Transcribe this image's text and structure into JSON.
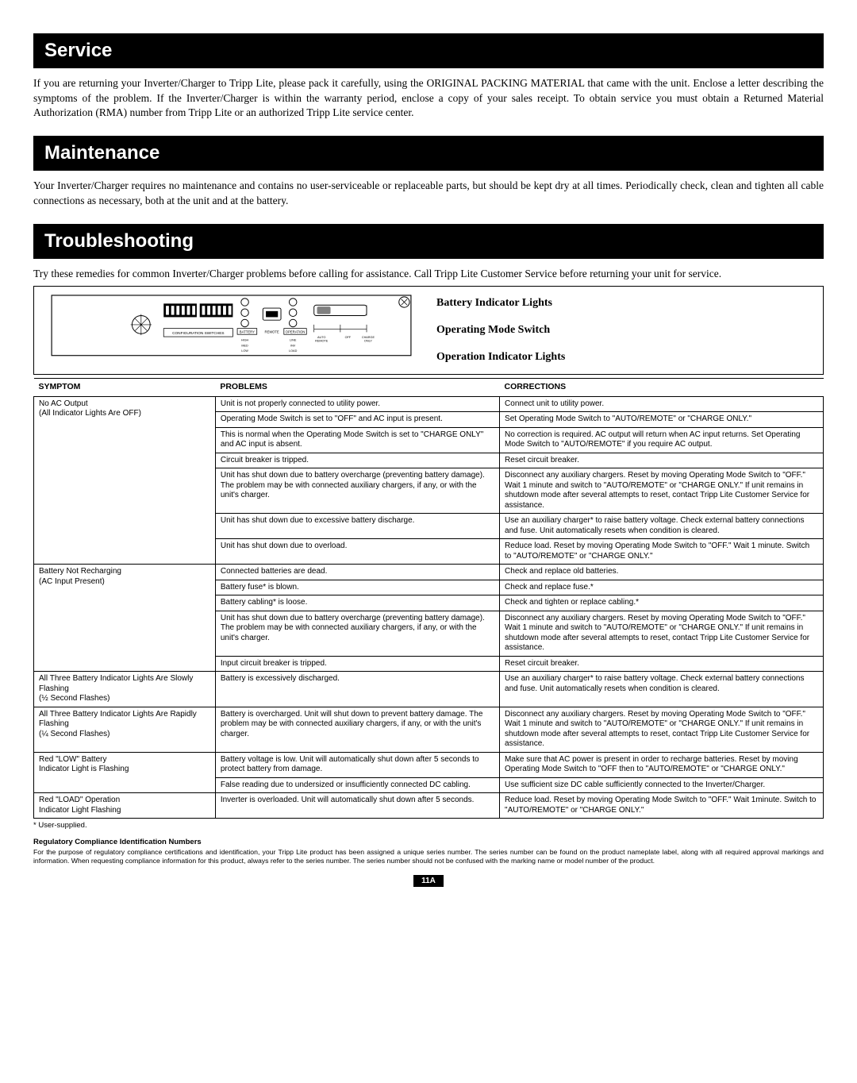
{
  "sections": {
    "service": {
      "title": "Service",
      "body": "If you are returning your Inverter/Charger to Tripp Lite, please pack it carefully, using the ORIGINAL PACKING MATERIAL that came with the unit. Enclose a letter describing the symptoms of the problem. If the Inverter/Charger is within the warranty period, enclose a copy of your sales receipt. To obtain service you must obtain a Returned Material Authorization (RMA) number from Tripp Lite or an authorized Tripp Lite service center."
    },
    "maintenance": {
      "title": "Maintenance",
      "body": "Your Inverter/Charger requires no maintenance and contains no user-serviceable or replaceable parts, but should be kept dry at all times. Periodically check, clean and tighten all cable connections as necessary, both at the unit and at the battery."
    },
    "troubleshooting": {
      "title": "Troubleshooting",
      "body": "Try these remedies for common Inverter/Charger problems before calling for assistance. Call Tripp Lite Customer Service before returning your unit for service."
    }
  },
  "diagram_labels": {
    "battery": "Battery Indicator Lights",
    "mode": "Operating Mode Switch",
    "operation": "Operation Indicator Lights",
    "panel_labels": {
      "config": "CONFIGURATION SWITCHES",
      "battery_col": "BATTERY",
      "remote": "REMOTE",
      "operation_col": "OPERATION",
      "high": "HIGH",
      "med": "MED",
      "low": "LOW",
      "line": "LINE",
      "inv": "INV",
      "load": "LOAD",
      "auto": "AUTO",
      "remote2": "REMOTE",
      "off": "OFF",
      "charge": "CHARGE",
      "only": "ONLY"
    }
  },
  "table": {
    "headers": {
      "symptom": "SYMPTOM",
      "problems": "PROBLEMS",
      "corrections": "CORRECTIONS"
    },
    "rows": [
      {
        "group_start": true,
        "symptom": "No AC Output",
        "symptom2": "(All Indicator Lights Are OFF)",
        "rowspan": 7,
        "problem": "Unit is not properly connected to utility power.",
        "correction": "Connect unit to utility power."
      },
      {
        "problem": "Operating Mode Switch is set to \"OFF\" and AC input is present.",
        "correction": "Set Operating Mode Switch to \"AUTO/REMOTE\" or \"CHARGE ONLY.\""
      },
      {
        "problem": "This is normal when the Operating Mode Switch is set to \"CHARGE ONLY\" and AC input is absent.",
        "correction": "No correction is required. AC output will return when AC input returns. Set Operating Mode Switch to \"AUTO/REMOTE\" if you require AC output."
      },
      {
        "problem": "Circuit breaker is tripped.",
        "correction": "Reset circuit breaker."
      },
      {
        "problem": "Unit has shut down due to battery overcharge (preventing battery damage). The problem may be with connected auxiliary chargers, if any, or with the unit's charger.",
        "correction": "Disconnect any auxiliary chargers. Reset by moving Operating Mode Switch to \"OFF.\" Wait 1 minute and switch to \"AUTO/REMOTE\" or \"CHARGE ONLY.\" If unit remains in shutdown mode after several attempts to reset, contact Tripp Lite Customer Service for assistance."
      },
      {
        "problem": "Unit has shut down due to excessive battery discharge.",
        "correction": "Use an auxiliary charger* to raise battery voltage. Check external battery connections and fuse. Unit automatically resets when condition is cleared."
      },
      {
        "problem": "Unit has shut down due to overload.",
        "correction": "Reduce load. Reset by moving Operating Mode Switch to \"OFF.\" Wait 1 minute. Switch to \"AUTO/REMOTE\" or  \"CHARGE ONLY.\""
      },
      {
        "group_start": true,
        "symptom": "Battery Not Recharging",
        "symptom2": "(AC Input Present)",
        "rowspan": 5,
        "problem": "Connected batteries are dead.",
        "correction": "Check and replace old batteries."
      },
      {
        "problem": "Battery fuse* is blown.",
        "correction": "Check and replace fuse.*"
      },
      {
        "problem": "Battery cabling* is loose.",
        "correction": "Check and tighten or replace cabling.*"
      },
      {
        "problem": "Unit has shut down due to battery overcharge (preventing battery damage). The problem may be with connected auxiliary chargers, if any, or with the unit's charger.",
        "correction": "Disconnect any auxiliary chargers. Reset by moving Operating Mode Switch to \"OFF.\" Wait 1 minute and switch to \"AUTO/REMOTE\" or \"CHARGE ONLY.\" If unit remains in shutdown mode after several attempts to reset, contact Tripp Lite Customer Service for assistance."
      },
      {
        "problem": "Input circuit breaker is tripped.",
        "correction": "Reset circuit breaker."
      },
      {
        "group_start": true,
        "symptom": "All Three Battery Indicator Lights Are Slowly Flashing",
        "symptom2": "(½ Second Flashes)",
        "rowspan": 1,
        "problem": "Battery is excessively discharged.",
        "correction": "Use an auxiliary charger* to raise battery voltage. Check external battery connections and fuse. Unit automatically resets when condition is cleared."
      },
      {
        "group_start": true,
        "symptom": "All Three Battery Indicator Lights Are Rapidly Flashing",
        "symptom2": "(¼ Second Flashes)",
        "rowspan": 1,
        "problem": "Battery is overcharged. Unit will shut down to prevent battery damage. The problem may be with connected auxiliary chargers, if any, or with the unit's charger.",
        "correction": "Disconnect any auxiliary chargers. Reset by moving Operating Mode Switch to \"OFF.\" Wait 1 minute and switch to \"AUTO/REMOTE\" or \"CHARGE ONLY.\" If unit remains in shutdown mode after several attempts to reset, contact Tripp Lite Customer Service for assistance."
      },
      {
        "group_start": true,
        "symptom": "Red \"LOW\" Battery",
        "symptom2": "Indicator Light is Flashing",
        "rowspan": 2,
        "problem": "Battery voltage is low. Unit will automatically shut down after 5 seconds to protect battery from damage.",
        "correction": "Make sure that AC power is present in order to recharge batteries. Reset by moving Operating Mode Switch to \"OFF then to \"AUTO/REMOTE\" or \"CHARGE ONLY.\""
      },
      {
        "problem": "False reading due to undersized or insufficiently connected DC cabling.",
        "correction": "Use sufficient size DC cable sufficiently connected to the Inverter/Charger."
      },
      {
        "group_start": true,
        "last": true,
        "symptom": "Red \"LOAD\" Operation",
        "symptom2": "Indicator Light Flashing",
        "rowspan": 1,
        "problem": "Inverter is overloaded. Unit will automatically shut down after 5 seconds.",
        "correction": "Reduce load. Reset by moving Operating Mode Switch to \"OFF.\" Wait 1minute. Switch to \"AUTO/REMOTE\" or \"CHARGE ONLY.\""
      }
    ]
  },
  "footnote": "* User-supplied.",
  "regulatory": {
    "heading": "Regulatory Compliance Identification Numbers",
    "body": "For the purpose of regulatory compliance certifications and identification, your Tripp Lite product has been assigned a unique series number. The series number can be found on the product nameplate label, along with all required approval markings and information. When requesting compliance information for this product, always refer to the series number. The series number should not be confused with the marking name or model number of the product."
  },
  "page_number": "11A"
}
